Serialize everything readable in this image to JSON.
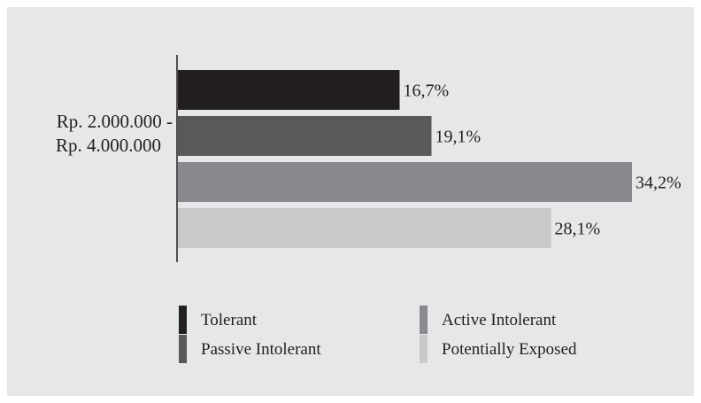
{
  "chart_data": {
    "type": "bar",
    "orientation": "horizontal",
    "category_label_lines": [
      "Rp. 2.000.000 -",
      "Rp. 4.000.000"
    ],
    "series": [
      {
        "name": "Tolerant",
        "value": 16.7,
        "label": "16,7%",
        "color": "#231f20"
      },
      {
        "name": "Passive Intolerant",
        "value": 19.1,
        "label": "19,1%",
        "color": "#58595b"
      },
      {
        "name": "Active Intolerant",
        "value": 34.2,
        "label": "34,2%",
        "color": "#898a8d"
      },
      {
        "name": "Potentially Exposed",
        "value": 28.1,
        "label": "28,1%",
        "color": "#c8c9cb"
      }
    ],
    "value_unit": "%",
    "xlim": [
      0,
      34.2
    ],
    "legend_position": "bottom",
    "grid": false
  },
  "colors": {
    "background": "#e6e7e8",
    "text": "#231f20",
    "axis": "#231f20"
  }
}
